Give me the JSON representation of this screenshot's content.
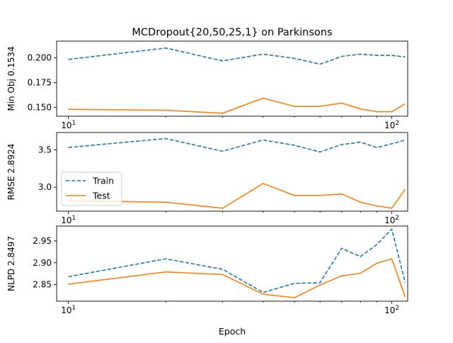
{
  "figure": {
    "title": "MCDropout{20,50,25,1} on Parkinsons",
    "xlabel": "Epoch"
  },
  "legend": {
    "placement": "left, over middle panel",
    "entries": [
      {
        "label": "Train",
        "color": "#1f77b4",
        "style": "dashed"
      },
      {
        "label": "Test",
        "color": "#ff7f0e",
        "style": "solid"
      }
    ]
  },
  "chart_data": [
    {
      "type": "line",
      "ylabel": "Min Obj 0.1534",
      "xscale": "log",
      "xlim": [
        9.2,
        112
      ],
      "ylim": [
        0.141,
        0.217
      ],
      "yticks": [
        0.15,
        0.175,
        0.2
      ],
      "ytick_labels": [
        "0.150",
        "0.175",
        "0.200"
      ],
      "xtick_labels": [
        "10^1",
        "10^2"
      ],
      "x": [
        10,
        20,
        30,
        40,
        50,
        60,
        70,
        80,
        90,
        100,
        110
      ],
      "series": [
        {
          "name": "Train",
          "color": "#1f77b4",
          "style": "dashed",
          "values": [
            0.1985,
            0.21,
            0.197,
            0.2038,
            0.1995,
            0.1937,
            0.2015,
            0.2038,
            0.2025,
            0.2025,
            0.201
          ]
        },
        {
          "name": "Test",
          "color": "#ff7f0e",
          "style": "solid",
          "values": [
            0.148,
            0.147,
            0.144,
            0.1593,
            0.151,
            0.151,
            0.1543,
            0.1483,
            0.1455,
            0.1455,
            0.1535
          ]
        }
      ]
    },
    {
      "type": "line",
      "ylabel": "RMSE 2.8924",
      "xscale": "log",
      "xlim": [
        9.2,
        112
      ],
      "ylim": [
        2.68,
        3.73
      ],
      "yticks": [
        3.0,
        3.5
      ],
      "ytick_labels": [
        "3.0",
        "3.5"
      ],
      "xtick_labels": [
        "10^1",
        "10^2"
      ],
      "x": [
        10,
        20,
        30,
        40,
        50,
        60,
        70,
        80,
        90,
        100,
        110
      ],
      "series": [
        {
          "name": "Train",
          "color": "#1f77b4",
          "style": "dashed",
          "values": [
            3.53,
            3.65,
            3.48,
            3.63,
            3.56,
            3.47,
            3.57,
            3.6,
            3.53,
            3.58,
            3.63
          ]
        },
        {
          "name": "Test",
          "color": "#ff7f0e",
          "style": "solid",
          "values": [
            2.82,
            2.8,
            2.72,
            3.05,
            2.89,
            2.89,
            2.91,
            2.8,
            2.75,
            2.72,
            2.97
          ]
        }
      ]
    },
    {
      "type": "line",
      "ylabel": "NLPD 2.8497",
      "xscale": "log",
      "xlim": [
        9.2,
        112
      ],
      "ylim": [
        2.812,
        2.984
      ],
      "yticks": [
        2.85,
        2.9,
        2.95
      ],
      "ytick_labels": [
        "2.85",
        "2.90",
        "2.95"
      ],
      "xtick_labels": [
        "10^1",
        "10^2"
      ],
      "x": [
        10,
        20,
        30,
        40,
        50,
        60,
        70,
        80,
        90,
        100,
        110
      ],
      "series": [
        {
          "name": "Train",
          "color": "#1f77b4",
          "style": "dashed",
          "values": [
            2.868,
            2.909,
            2.885,
            2.832,
            2.853,
            2.854,
            2.933,
            2.914,
            2.942,
            2.977,
            2.855
          ]
        },
        {
          "name": "Test",
          "color": "#ff7f0e",
          "style": "solid",
          "values": [
            2.851,
            2.879,
            2.873,
            2.828,
            2.82,
            2.849,
            2.87,
            2.876,
            2.899,
            2.909,
            2.822
          ]
        }
      ]
    }
  ]
}
